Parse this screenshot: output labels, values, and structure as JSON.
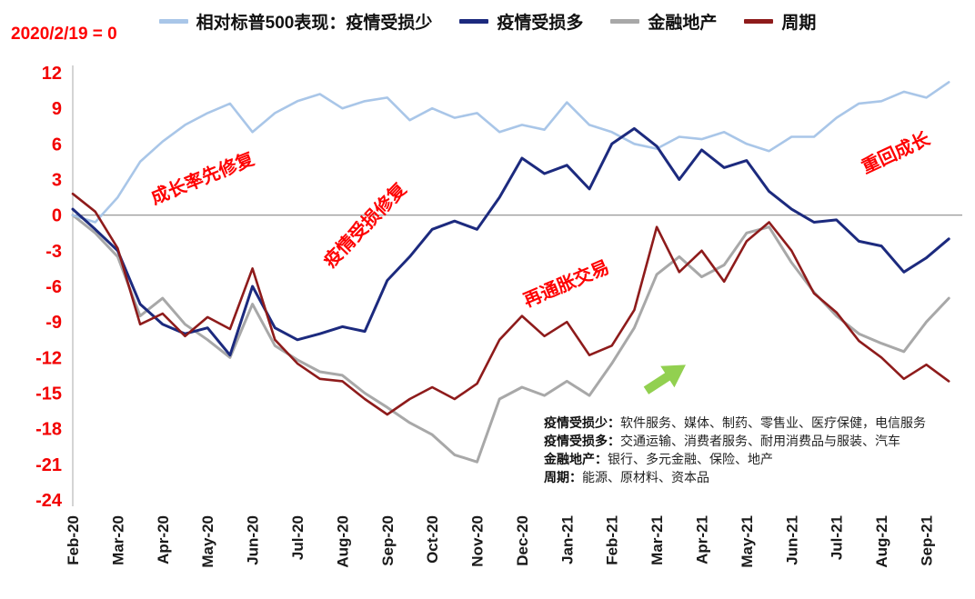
{
  "baseline_note": "2020/2/19 = 0",
  "colors": {
    "light_blue": "#a9c6e8",
    "navy": "#1c2a7e",
    "gray": "#a8a8a8",
    "maroon": "#8e1b1b",
    "axis_red": "#f20000",
    "annotation_red": "#fe0000",
    "zero_line": "#8c8c8c",
    "axis_line": "#b7b7b7",
    "arrow_green": "#92d050",
    "tick_text": "#1a1a1a"
  },
  "legend": {
    "items": [
      {
        "label": "相对标普500表现：疫情受损少",
        "color": "#a9c6e8"
      },
      {
        "label": "疫情受损多",
        "color": "#1c2a7e"
      },
      {
        "label": "金融地产",
        "color": "#a8a8a8"
      },
      {
        "label": "周期",
        "color": "#8e1b1b"
      }
    ]
  },
  "annotations": {
    "growth_first": "成长率先修复",
    "damaged_repair": "疫情受损修复",
    "reflation": "再通胀交易",
    "back_to_growth": "重回成长"
  },
  "footnotes": {
    "items": [
      {
        "label": "疫情受损少：",
        "text": "软件服务、媒体、制药、零售业、医疗保健，电信服务"
      },
      {
        "label": "疫情受损多：",
        "text": "交通运输、消费者服务、耐用消费品与服装、汽车"
      },
      {
        "label": "金融地产：",
        "text": "银行、多元金融、保险、地产"
      },
      {
        "label": "周期：",
        "text": "能源、原材料、资本品"
      }
    ]
  },
  "chart_data": {
    "type": "line",
    "title": "相对标普500表现",
    "baseline": "2020/2/19 = 0",
    "ylim": [
      -24,
      12
    ],
    "yticks": [
      12,
      9,
      6,
      3,
      0,
      -3,
      -6,
      -9,
      -12,
      -15,
      -18,
      -21,
      -24
    ],
    "x_step": 0.5,
    "x_extent": 19.8,
    "x_tick_labels": [
      "Feb-20",
      "Mar-20",
      "Apr-20",
      "May-20",
      "Jun-20",
      "Jul-20",
      "Aug-20",
      "Sep-20",
      "Oct-20",
      "Nov-20",
      "Dec-20",
      "Jan-21",
      "Feb-21",
      "Mar-21",
      "Apr-21",
      "May-21",
      "Jun-21",
      "Jul-21",
      "Aug-21",
      "Sep-21"
    ],
    "grid": false,
    "legend_position": "top",
    "series": [
      {
        "id": "financials-realestate",
        "name": "金融地产",
        "color": "#a8a8a8",
        "width": 3,
        "values": [
          0,
          -1.5,
          -3.5,
          -8.5,
          -7.0,
          -9.2,
          -10.5,
          -12.0,
          -7.5,
          -11.0,
          -12.2,
          -13.2,
          -13.5,
          -15.0,
          -16.2,
          -17.5,
          -18.5,
          -20.2,
          -20.8,
          -15.5,
          -14.5,
          -15.2,
          -14.0,
          -15.2,
          -12.5,
          -9.5,
          -5.0,
          -3.5,
          -5.2,
          -4.2,
          -1.5,
          -1.0,
          -4.0,
          -6.5,
          -8.5,
          -10.0,
          -10.8,
          -11.5,
          -9.0,
          -7.0
        ]
      },
      {
        "id": "less-hurt-by-pandemic",
        "name": "疫情受损少",
        "color": "#a9c6e8",
        "width": 2.6,
        "values": [
          0,
          -0.6,
          1.5,
          4.5,
          6.2,
          7.6,
          8.6,
          9.4,
          7.0,
          8.6,
          9.6,
          10.2,
          9.0,
          9.6,
          9.9,
          8.0,
          9.0,
          8.2,
          8.6,
          7.0,
          7.6,
          7.2,
          9.5,
          7.6,
          7.0,
          6.0,
          5.6,
          6.6,
          6.4,
          7.0,
          6.0,
          5.4,
          6.6,
          6.6,
          8.2,
          9.4,
          9.6,
          10.4,
          9.9,
          11.2
        ]
      },
      {
        "id": "more-hurt-by-pandemic",
        "name": "疫情受损多",
        "color": "#1c2a7e",
        "width": 3,
        "values": [
          0.5,
          -1.2,
          -3.0,
          -7.5,
          -9.2,
          -10.0,
          -9.5,
          -11.8,
          -6.0,
          -9.5,
          -10.5,
          -10.0,
          -9.4,
          -9.8,
          -5.5,
          -3.5,
          -1.2,
          -0.5,
          -1.2,
          1.5,
          4.8,
          3.5,
          4.2,
          2.2,
          6.0,
          7.3,
          5.8,
          3.0,
          5.5,
          4.0,
          4.6,
          2.0,
          0.5,
          -0.6,
          -0.4,
          -2.2,
          -2.6,
          -4.8,
          -3.6,
          -2.0
        ]
      },
      {
        "id": "cyclicals",
        "name": "周期",
        "color": "#8e1b1b",
        "width": 2.6,
        "values": [
          1.8,
          0.3,
          -2.8,
          -9.2,
          -8.3,
          -10.2,
          -8.6,
          -9.6,
          -4.5,
          -10.5,
          -12.5,
          -13.8,
          -14.0,
          -15.5,
          -16.8,
          -15.5,
          -14.5,
          -15.5,
          -14.2,
          -10.5,
          -8.5,
          -10.2,
          -9.0,
          -11.8,
          -11.0,
          -8.0,
          -1.0,
          -4.8,
          -3.0,
          -5.6,
          -2.2,
          -0.6,
          -3.0,
          -6.6,
          -8.2,
          -10.6,
          -12.0,
          -13.8,
          -12.6,
          -14.0
        ]
      }
    ]
  }
}
